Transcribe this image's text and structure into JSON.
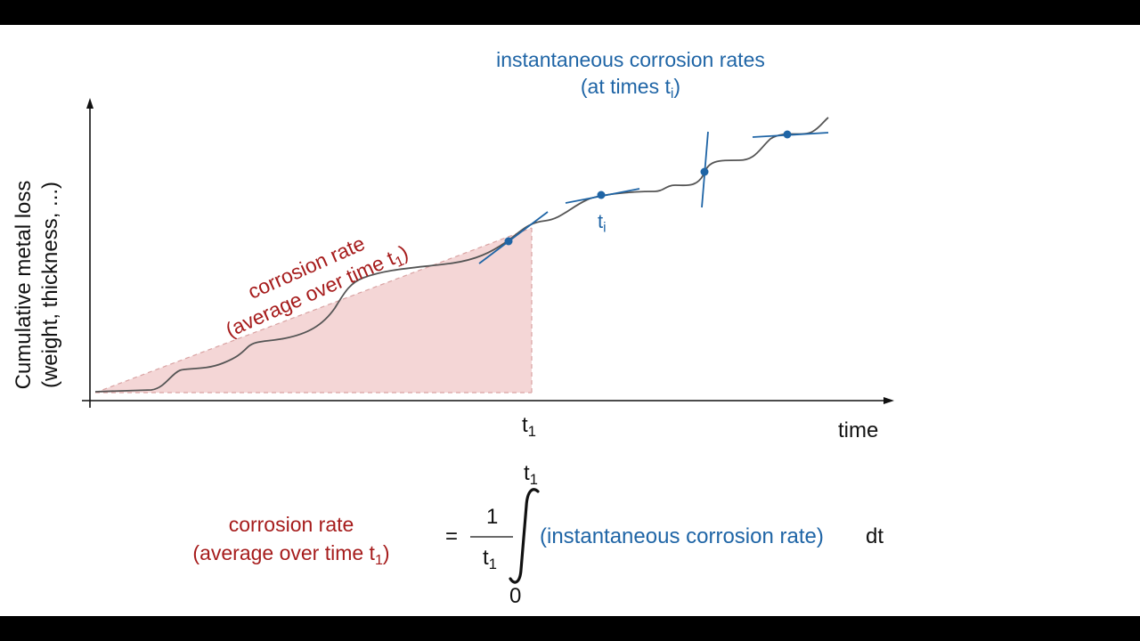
{
  "axes": {
    "y_label_line1": "Cumulative metal loss",
    "y_label_line2": "(weight, thickness, ...)",
    "x_label": "time",
    "t1_base": "t",
    "t1_sub": "1"
  },
  "average_label": {
    "line1": "corrosion rate",
    "line2_text": "(average over time t",
    "line2_sub": "1",
    "line2_close": ")"
  },
  "instantaneous": {
    "title_line1": "instantaneous corrosion rates",
    "title_line2_text": "(at times t",
    "title_line2_sub": "i",
    "title_line2_close": ")",
    "ti_base": "t",
    "ti_sub": "i"
  },
  "formula": {
    "lhs_line1": "corrosion rate",
    "lhs_line2_text": "(average over time t",
    "lhs_line2_sub": "1",
    "lhs_line2_close": ")",
    "equals": "=",
    "numerator": "1",
    "denominator_base": "t",
    "denominator_sub": "1",
    "upper_limit_base": "t",
    "upper_limit_sub": "1",
    "lower_limit": "0",
    "integrand": "(instantaneous corrosion rate)",
    "differential": "dt"
  },
  "colors": {
    "average": "#a61c1c",
    "instantaneous": "#1f65a6",
    "shaded_area": "#f4d6d6",
    "curve": "#555555"
  }
}
